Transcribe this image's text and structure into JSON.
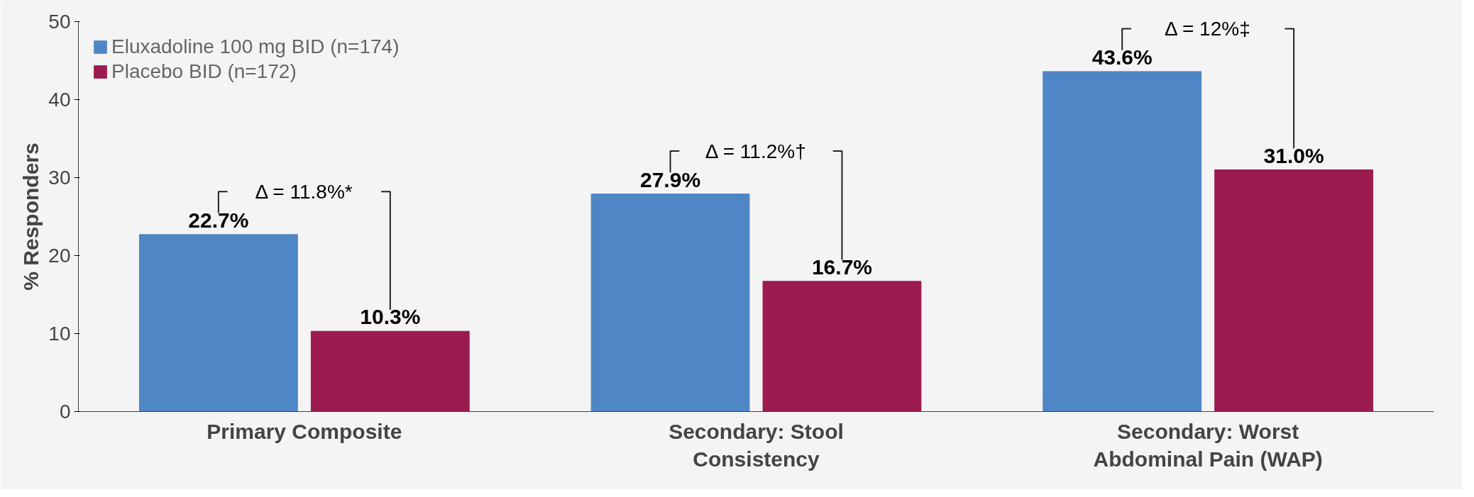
{
  "chart_data": {
    "type": "bar",
    "ylabel": "% Responders",
    "categories": [
      "Primary Composite",
      "Secondary: Stool\nConsistency",
      "Secondary: Worst\nAbdominal Pain (WAP)"
    ],
    "series": [
      {
        "name": "Eluxadoline 100 mg BID (n=174)",
        "color": "#4f86c6",
        "values": [
          22.7,
          27.9,
          43.6
        ],
        "value_labels": [
          "22.7%",
          "27.9%",
          "43.6%"
        ]
      },
      {
        "name": "Placebo BID (n=172)",
        "color": "#9b1b4e",
        "values": [
          10.3,
          16.7,
          31.0
        ],
        "value_labels": [
          "10.3%",
          "16.7%",
          "31.0%"
        ]
      }
    ],
    "annotations": [
      "Δ = 11.8%*",
      "Δ = 11.2%†",
      "Δ = 12%‡"
    ],
    "ylim": [
      0,
      50
    ],
    "yticks": [
      0,
      10,
      20,
      30,
      40,
      50
    ],
    "grid": false,
    "legend": "top left"
  }
}
